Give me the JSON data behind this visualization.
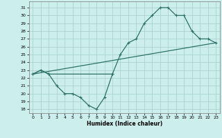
{
  "xlabel": "Humidex (Indice chaleur)",
  "background_color": "#cceeed",
  "grid_color": "#aad4d0",
  "line_color": "#2d7068",
  "xlim": [
    -0.5,
    23.5
  ],
  "ylim": [
    17.5,
    31.8
  ],
  "yticks": [
    18,
    19,
    20,
    21,
    22,
    23,
    24,
    25,
    26,
    27,
    28,
    29,
    30,
    31
  ],
  "xticks": [
    0,
    1,
    2,
    3,
    4,
    5,
    6,
    7,
    8,
    9,
    10,
    11,
    12,
    13,
    14,
    15,
    16,
    17,
    18,
    19,
    20,
    21,
    22,
    23
  ],
  "s0x": [
    0,
    1,
    2,
    3,
    4,
    5,
    6,
    7,
    8,
    9,
    10
  ],
  "s0y": [
    22.5,
    23.0,
    22.5,
    21.0,
    20.0,
    20.0,
    19.5,
    18.5,
    18.0,
    19.5,
    22.5
  ],
  "s1x": [
    0,
    1,
    2,
    10,
    11,
    12,
    13,
    14,
    15,
    16,
    17,
    18,
    19,
    20,
    21,
    22,
    23
  ],
  "s1y": [
    22.5,
    23.0,
    22.5,
    22.5,
    25.0,
    26.5,
    27.0,
    29.0,
    30.0,
    31.0,
    31.0,
    30.0,
    30.0,
    28.0,
    27.0,
    27.0,
    26.5
  ],
  "s2x": [
    0,
    23
  ],
  "s2y": [
    22.5,
    26.5
  ]
}
